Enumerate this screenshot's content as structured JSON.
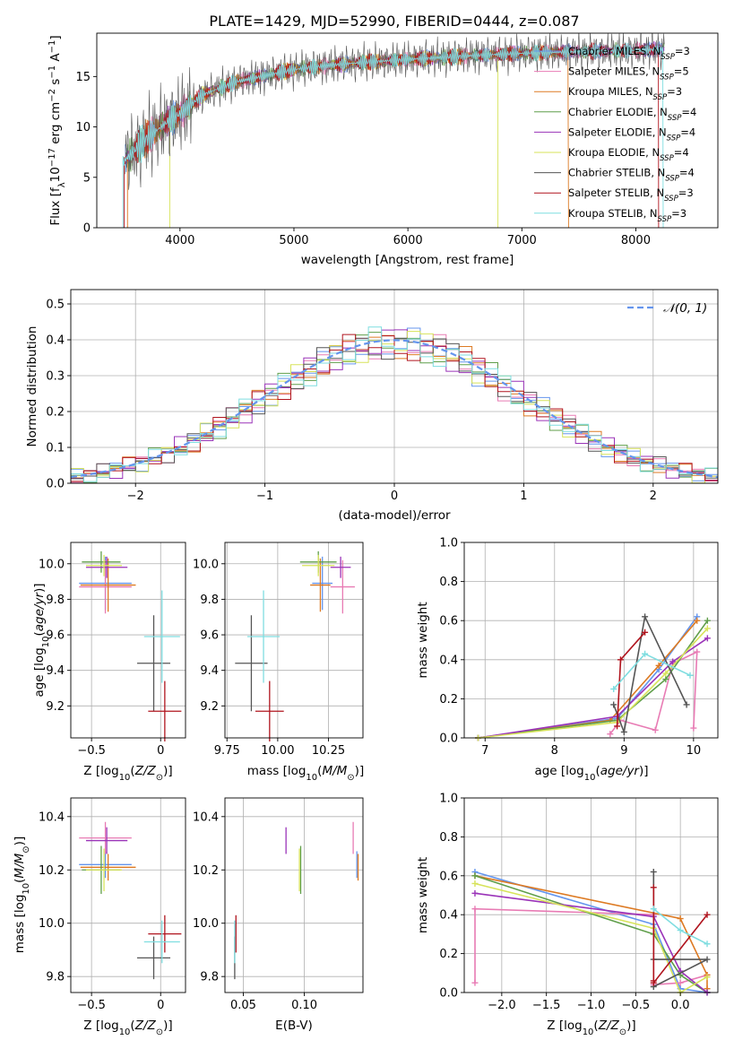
{
  "title": "PLATE=1429, MJD=52990, FIBERID=0444, z=0.087",
  "colors": {
    "Chabrier MILES": "#6495ed",
    "Salpeter MILES": "#e87bb4",
    "Kroupa MILES": "#dd7a23",
    "Chabrier ELODIE": "#5f9e4a",
    "Salpeter ELODIE": "#9a33b8",
    "Kroupa ELODIE": "#d7e35a",
    "Chabrier STELIB": "#555555",
    "Salpeter STELIB": "#b0141e",
    "Kroupa STELIB": "#7fdde0",
    "gaussian": "#6495ed",
    "grid": "#b0b0b0"
  },
  "chart_data": [
    {
      "id": "spectrum",
      "type": "line",
      "xlabel": "wavelength [Angstrom, rest frame]",
      "ylabel": "Flux [f_λ10^-17 erg cm^-2 s^-1 A^-1]",
      "xlim": [
        3270,
        8720
      ],
      "ylim": [
        0,
        19.3
      ],
      "xticks": [
        4000,
        5000,
        6000,
        7000,
        8000
      ],
      "yticks": [
        0,
        5,
        10,
        15
      ],
      "grid": false,
      "legend": "top-right",
      "legend_entries": [
        "Chabrier MILES, N_SSP=3",
        "Salpeter MILES, N_SSP=5",
        "Kroupa MILES, N_SSP=3",
        "Chabrier ELODIE, N_SSP=4",
        "Salpeter ELODIE, N_SSP=4",
        "Kroupa ELODIE, N_SSP=4",
        "Chabrier STELIB, N_SSP=4",
        "Salpeter STELIB, N_SSP=3",
        "Kroupa STELIB, N_SSP=3"
      ],
      "data_curve": {
        "x": [
          3500,
          3700,
          3900,
          4000,
          4200,
          4500,
          4800,
          5000,
          5300,
          5600,
          6000,
          6300,
          6600,
          6800,
          7000,
          7300,
          7600,
          8000,
          8400,
          8700
        ],
        "y": [
          6.5,
          8.8,
          10.6,
          11.3,
          13.2,
          14.5,
          15.2,
          15.7,
          16.1,
          16.4,
          16.7,
          16.9,
          17.1,
          17.2,
          17.3,
          17.4,
          17.5,
          17.6,
          17.8,
          17.9
        ]
      },
      "model_segments": [
        {
          "name": "Salpeter STELIB",
          "x": [
            3510,
            8200
          ]
        },
        {
          "name": "Kroupa MILES",
          "x": [
            3540,
            7410
          ]
        },
        {
          "name": "Kroupa ELODIE",
          "x": [
            3910,
            6790
          ]
        },
        {
          "name": "Kroupa STELIB",
          "x": [
            3500,
            8240
          ]
        }
      ]
    },
    {
      "id": "residual_hist",
      "type": "line",
      "xlabel": "(data-model)/error",
      "ylabel": "Normed distribution",
      "xlim": [
        -2.5,
        2.5
      ],
      "ylim": [
        0,
        0.54
      ],
      "xticks": [
        -2,
        -1,
        0,
        1,
        2
      ],
      "yticks": [
        0.0,
        0.1,
        0.2,
        0.3,
        0.4,
        0.5
      ],
      "grid": true,
      "legend": "top-right",
      "legend_entries": [
        "𝒩(0, 1)"
      ],
      "bin_width": 0.1
    },
    {
      "id": "age_vs_Z",
      "type": "scatter",
      "xlabel": "Z [log10(Z/Z⊙)]",
      "ylabel": "age  [log10(age/yr)]",
      "xlim": [
        -0.65,
        0.18
      ],
      "ylim": [
        9.02,
        10.12
      ],
      "xticks": [
        -0.5,
        0.0
      ],
      "yticks": [
        9.2,
        9.4,
        9.6,
        9.8,
        10.0
      ],
      "grid": true,
      "points": [
        {
          "name": "Chabrier MILES",
          "x": -0.4,
          "xerr": 0.19,
          "y": 9.89,
          "yerr": 0.15
        },
        {
          "name": "Salpeter MILES",
          "x": -0.4,
          "xerr": 0.19,
          "y": 9.87,
          "yerr": 0.15
        },
        {
          "name": "Kroupa MILES",
          "x": -0.38,
          "xerr": 0.2,
          "y": 9.88,
          "yerr": 0.15
        },
        {
          "name": "Chabrier ELODIE",
          "x": -0.43,
          "xerr": 0.14,
          "y": 10.01,
          "yerr": 0.06
        },
        {
          "name": "Salpeter ELODIE",
          "x": -0.39,
          "xerr": 0.15,
          "y": 9.98,
          "yerr": 0.06
        },
        {
          "name": "Kroupa ELODIE",
          "x": -0.41,
          "xerr": 0.13,
          "y": 9.99,
          "yerr": 0.06
        },
        {
          "name": "Chabrier STELIB",
          "x": -0.05,
          "xerr": 0.12,
          "y": 9.44,
          "yerr": 0.27
        },
        {
          "name": "Salpeter STELIB",
          "x": 0.03,
          "xerr": 0.12,
          "y": 9.17,
          "yerr": 0.17
        },
        {
          "name": "Kroupa STELIB",
          "x": 0.01,
          "xerr": 0.13,
          "y": 9.59,
          "yerr": 0.26
        }
      ]
    },
    {
      "id": "age_vs_mass",
      "type": "scatter",
      "xlabel": "mass [log10(M/M⊙)]",
      "ylabel": "",
      "xlim": [
        9.74,
        10.42
      ],
      "ylim": [
        9.02,
        10.12
      ],
      "xticks": [
        9.75,
        10.0,
        10.25
      ],
      "yticks": [
        9.2,
        9.4,
        9.6,
        9.8,
        10.0
      ],
      "grid": true,
      "points": [
        {
          "name": "Chabrier MILES",
          "x": 10.22,
          "xerr": 0.05,
          "y": 9.89,
          "yerr": 0.15
        },
        {
          "name": "Salpeter MILES",
          "x": 10.32,
          "xerr": 0.06,
          "y": 9.87,
          "yerr": 0.15
        },
        {
          "name": "Kroupa MILES",
          "x": 10.21,
          "xerr": 0.05,
          "y": 9.88,
          "yerr": 0.15
        },
        {
          "name": "Chabrier ELODIE",
          "x": 10.2,
          "xerr": 0.09,
          "y": 10.01,
          "yerr": 0.06
        },
        {
          "name": "Salpeter ELODIE",
          "x": 10.31,
          "xerr": 0.05,
          "y": 9.98,
          "yerr": 0.06
        },
        {
          "name": "Kroupa ELODIE",
          "x": 10.2,
          "xerr": 0.08,
          "y": 9.99,
          "yerr": 0.06
        },
        {
          "name": "Chabrier STELIB",
          "x": 9.87,
          "xerr": 0.08,
          "y": 9.44,
          "yerr": 0.27
        },
        {
          "name": "Salpeter STELIB",
          "x": 9.96,
          "xerr": 0.07,
          "y": 9.17,
          "yerr": 0.17
        },
        {
          "name": "Kroupa STELIB",
          "x": 9.93,
          "xerr": 0.08,
          "y": 9.59,
          "yerr": 0.26
        }
      ]
    },
    {
      "id": "mass_weight_vs_age",
      "type": "line",
      "xlabel": "age  [log10(age/yr)]",
      "ylabel": "mass weight",
      "xlim": [
        6.7,
        10.35
      ],
      "ylim": [
        0.0,
        1.0
      ],
      "xticks": [
        7,
        8,
        9,
        10
      ],
      "yticks": [
        0.0,
        0.2,
        0.4,
        0.6,
        0.8,
        1.0
      ],
      "grid": true,
      "series": [
        {
          "name": "Chabrier MILES",
          "x": [
            6.9,
            8.9,
            9.5,
            10.05
          ],
          "y": [
            0.0,
            0.1,
            0.35,
            0.62
          ]
        },
        {
          "name": "Salpeter MILES",
          "x": [
            8.8,
            8.95,
            9.45,
            9.7,
            10.05,
            10.0
          ],
          "y": [
            0.02,
            0.09,
            0.04,
            0.38,
            0.44,
            0.05
          ]
        },
        {
          "name": "Kroupa MILES",
          "x": [
            6.9,
            8.8,
            9.5,
            10.05
          ],
          "y": [
            0.0,
            0.09,
            0.37,
            0.6
          ]
        },
        {
          "name": "Chabrier ELODIE",
          "x": [
            6.9,
            8.9,
            9.6,
            10.2
          ],
          "y": [
            0.0,
            0.09,
            0.3,
            0.6
          ]
        },
        {
          "name": "Salpeter ELODIE",
          "x": [
            6.9,
            8.9,
            9.7,
            10.2
          ],
          "y": [
            0.0,
            0.11,
            0.39,
            0.51
          ]
        },
        {
          "name": "Kroupa ELODIE",
          "x": [
            6.9,
            8.9,
            9.6,
            10.2
          ],
          "y": [
            0.0,
            0.08,
            0.33,
            0.56
          ]
        },
        {
          "name": "Chabrier STELIB",
          "x": [
            8.85,
            9.0,
            9.3,
            9.9
          ],
          "y": [
            0.17,
            0.03,
            0.62,
            0.17
          ]
        },
        {
          "name": "Salpeter STELIB",
          "x": [
            8.9,
            8.95,
            9.3
          ],
          "y": [
            0.06,
            0.4,
            0.54
          ]
        },
        {
          "name": "Kroupa STELIB",
          "x": [
            8.85,
            9.3,
            9.95
          ],
          "y": [
            0.25,
            0.43,
            0.32
          ]
        }
      ]
    },
    {
      "id": "mass_vs_Z",
      "type": "scatter",
      "xlabel": "Z [log10(Z/Z⊙)]",
      "ylabel": "mass [log10(M/M⊙)]",
      "xlim": [
        -0.65,
        0.18
      ],
      "ylim": [
        9.74,
        10.47
      ],
      "xticks": [
        -0.5,
        0.0
      ],
      "yticks": [
        9.8,
        10.0,
        10.2,
        10.4
      ],
      "grid": true,
      "points": [
        {
          "name": "Chabrier MILES",
          "x": -0.4,
          "xerr": 0.19,
          "y": 10.22,
          "yerr": 0.05
        },
        {
          "name": "Salpeter MILES",
          "x": -0.4,
          "xerr": 0.19,
          "y": 10.32,
          "yerr": 0.06
        },
        {
          "name": "Kroupa MILES",
          "x": -0.38,
          "xerr": 0.2,
          "y": 10.21,
          "yerr": 0.05
        },
        {
          "name": "Chabrier ELODIE",
          "x": -0.43,
          "xerr": 0.14,
          "y": 10.2,
          "yerr": 0.09
        },
        {
          "name": "Salpeter ELODIE",
          "x": -0.39,
          "xerr": 0.15,
          "y": 10.31,
          "yerr": 0.05
        },
        {
          "name": "Kroupa ELODIE",
          "x": -0.41,
          "xerr": 0.13,
          "y": 10.2,
          "yerr": 0.08
        },
        {
          "name": "Chabrier STELIB",
          "x": -0.05,
          "xerr": 0.12,
          "y": 9.87,
          "yerr": 0.08
        },
        {
          "name": "Salpeter STELIB",
          "x": 0.03,
          "xerr": 0.12,
          "y": 9.96,
          "yerr": 0.07
        },
        {
          "name": "Kroupa STELIB",
          "x": 0.01,
          "xerr": 0.13,
          "y": 9.93,
          "yerr": 0.08
        }
      ]
    },
    {
      "id": "mass_vs_ebv",
      "type": "scatter",
      "xlabel": "E(B-V)",
      "ylabel": "",
      "xlim": [
        0.035,
        0.148
      ],
      "ylim": [
        9.74,
        10.47
      ],
      "xticks": [
        0.05,
        0.1
      ],
      "yticks": [
        9.8,
        10.0,
        10.2,
        10.4
      ],
      "grid": true,
      "points": [
        {
          "name": "Chabrier MILES",
          "x": 0.143,
          "y": 10.22,
          "yerr": 0.05
        },
        {
          "name": "Salpeter MILES",
          "x": 0.14,
          "y": 10.32,
          "yerr": 0.06
        },
        {
          "name": "Kroupa MILES",
          "x": 0.144,
          "y": 10.21,
          "yerr": 0.05
        },
        {
          "name": "Chabrier ELODIE",
          "x": 0.097,
          "y": 10.2,
          "yerr": 0.09
        },
        {
          "name": "Salpeter ELODIE",
          "x": 0.085,
          "y": 10.31,
          "yerr": 0.05
        },
        {
          "name": "Kroupa ELODIE",
          "x": 0.096,
          "y": 10.2,
          "yerr": 0.08
        },
        {
          "name": "Chabrier STELIB",
          "x": 0.043,
          "y": 9.87,
          "yerr": 0.08
        },
        {
          "name": "Salpeter STELIB",
          "x": 0.044,
          "y": 9.96,
          "yerr": 0.07
        },
        {
          "name": "Kroupa STELIB",
          "x": 0.043,
          "y": 9.93,
          "yerr": 0.08
        }
      ]
    },
    {
      "id": "mass_weight_vs_Z",
      "type": "line",
      "xlabel": "Z [log10(Z/Z⊙)]",
      "ylabel": "mass weight",
      "xlim": [
        -2.42,
        0.42
      ],
      "ylim": [
        0.0,
        1.0
      ],
      "xticks": [
        -2.0,
        -1.5,
        -1.0,
        -0.5,
        0.0
      ],
      "yticks": [
        0.0,
        0.2,
        0.4,
        0.6,
        0.8,
        1.0
      ],
      "grid": true,
      "series": [
        {
          "name": "Chabrier MILES",
          "x": [
            -2.3,
            -0.3,
            0.0,
            0.3
          ],
          "y": [
            0.62,
            0.35,
            0.02,
            0.0
          ]
        },
        {
          "name": "Salpeter MILES",
          "x": [
            -2.3,
            -2.3,
            -0.3,
            -0.3,
            0.0,
            0.3
          ],
          "y": [
            0.05,
            0.43,
            0.4,
            0.04,
            0.05,
            0.09
          ]
        },
        {
          "name": "Kroupa MILES",
          "x": [
            -2.3,
            0.0,
            0.3,
            0.3
          ],
          "y": [
            0.6,
            0.38,
            0.09,
            0.02
          ]
        },
        {
          "name": "Chabrier ELODIE",
          "x": [
            -2.3,
            -0.3,
            0.0,
            0.3
          ],
          "y": [
            0.6,
            0.3,
            0.09,
            0.0
          ]
        },
        {
          "name": "Salpeter ELODIE",
          "x": [
            -2.3,
            -0.3,
            0.0,
            0.3
          ],
          "y": [
            0.51,
            0.39,
            0.11,
            0.0
          ]
        },
        {
          "name": "Kroupa ELODIE",
          "x": [
            -2.3,
            -0.3,
            0.0,
            0.3
          ],
          "y": [
            0.56,
            0.33,
            0.0,
            0.08
          ]
        },
        {
          "name": "Chabrier STELIB",
          "x": [
            -0.3,
            -0.3,
            0.3,
            -0.3
          ],
          "y": [
            0.62,
            0.17,
            0.17,
            0.03
          ]
        },
        {
          "name": "Salpeter STELIB",
          "x": [
            -0.3,
            -0.3,
            -0.3,
            0.3
          ],
          "y": [
            0.54,
            0.06,
            0.05,
            0.4
          ]
        },
        {
          "name": "Kroupa STELIB",
          "x": [
            -0.3,
            0.0,
            0.3
          ],
          "y": [
            0.43,
            0.32,
            0.25
          ]
        }
      ]
    }
  ]
}
